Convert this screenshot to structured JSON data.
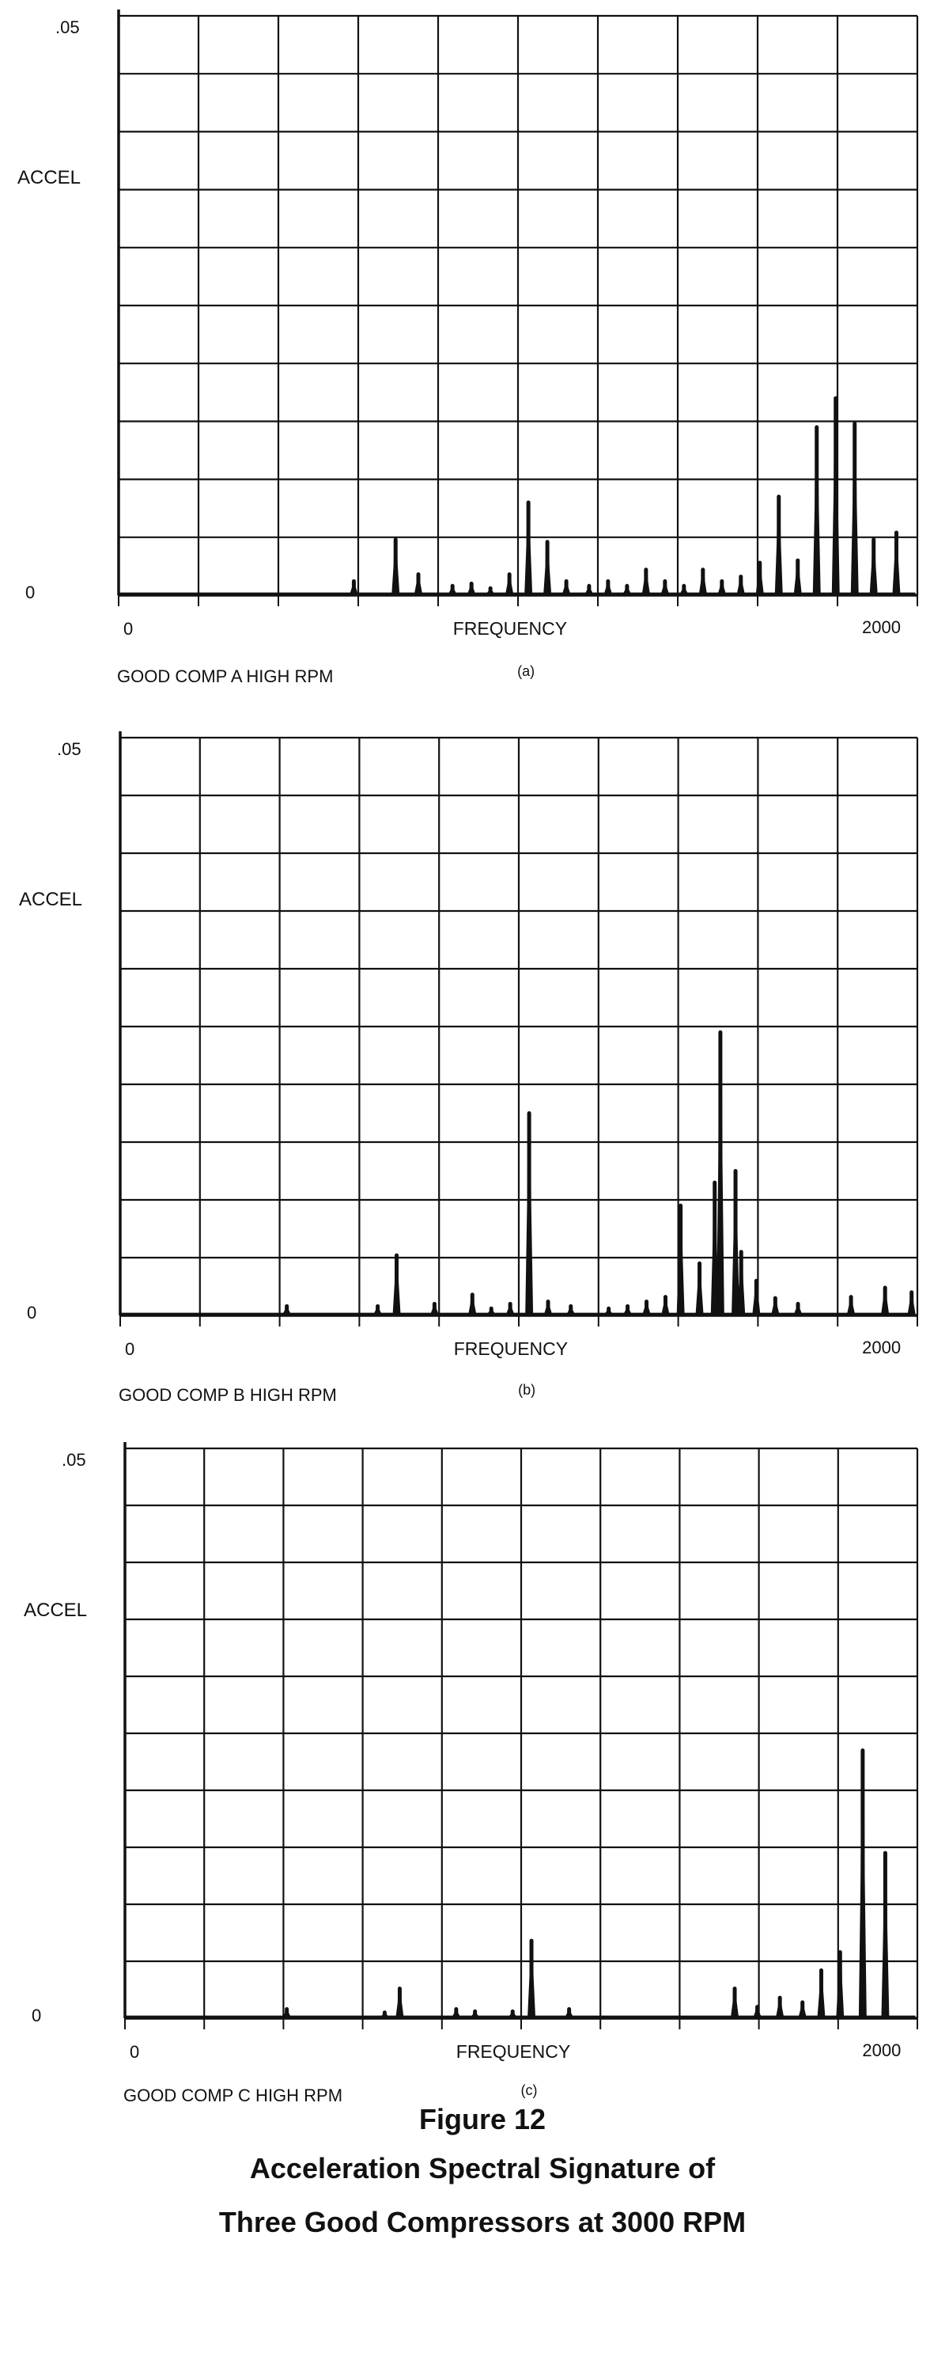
{
  "figure": {
    "number_label": "Figure 12",
    "title_line1": "Acceleration Spectral Signature of",
    "title_line2": "Three Good Compressors at 3000 RPM"
  },
  "colors": {
    "ink": "#111111",
    "background": "#ffffff"
  },
  "chart_data": [
    {
      "type": "line",
      "panel": "(a)",
      "title": "GOOD COMP A HIGH RPM",
      "xlabel": "FREQUENCY",
      "ylabel": "ACCEL",
      "xlim": [
        0,
        2000
      ],
      "ylim": [
        0,
        0.05
      ],
      "x_tick_labels": [
        "0",
        "2000"
      ],
      "y_tick_labels": [
        ".05",
        "0"
      ],
      "grid": true,
      "series": [
        {
          "peaks": [
            {
              "x": 620,
              "y": 0.0012
            },
            {
              "x": 730,
              "y": 0.0048
            },
            {
              "x": 790,
              "y": 0.0018
            },
            {
              "x": 880,
              "y": 0.0008
            },
            {
              "x": 930,
              "y": 0.001
            },
            {
              "x": 980,
              "y": 0.0006
            },
            {
              "x": 1030,
              "y": 0.0018
            },
            {
              "x": 1080,
              "y": 0.008
            },
            {
              "x": 1130,
              "y": 0.0046
            },
            {
              "x": 1180,
              "y": 0.0012
            },
            {
              "x": 1240,
              "y": 0.0008
            },
            {
              "x": 1290,
              "y": 0.0012
            },
            {
              "x": 1340,
              "y": 0.0008
            },
            {
              "x": 1390,
              "y": 0.0022
            },
            {
              "x": 1440,
              "y": 0.0012
            },
            {
              "x": 1490,
              "y": 0.0008
            },
            {
              "x": 1540,
              "y": 0.0022
            },
            {
              "x": 1590,
              "y": 0.0012
            },
            {
              "x": 1640,
              "y": 0.0016
            },
            {
              "x": 1690,
              "y": 0.0028
            },
            {
              "x": 1740,
              "y": 0.0085
            },
            {
              "x": 1790,
              "y": 0.003
            },
            {
              "x": 1840,
              "y": 0.0145
            },
            {
              "x": 1890,
              "y": 0.017
            },
            {
              "x": 1940,
              "y": 0.0148
            },
            {
              "x": 1990,
              "y": 0.0048
            },
            {
              "x": 2050,
              "y": 0.0054
            }
          ]
        }
      ]
    },
    {
      "type": "line",
      "panel": "(b)",
      "title": "GOOD COMP B HIGH RPM",
      "xlabel": "FREQUENCY",
      "ylabel": "ACCEL",
      "xlim": [
        0,
        2000
      ],
      "ylim": [
        0,
        0.05
      ],
      "x_tick_labels": [
        "0",
        "2000"
      ],
      "y_tick_labels": [
        ".05",
        "0"
      ],
      "grid": true,
      "series": [
        {
          "peaks": [
            {
              "x": 440,
              "y": 0.0008
            },
            {
              "x": 680,
              "y": 0.0008
            },
            {
              "x": 730,
              "y": 0.0052
            },
            {
              "x": 830,
              "y": 0.001
            },
            {
              "x": 930,
              "y": 0.0018
            },
            {
              "x": 980,
              "y": 0.0006
            },
            {
              "x": 1030,
              "y": 0.001
            },
            {
              "x": 1080,
              "y": 0.0175
            },
            {
              "x": 1130,
              "y": 0.0012
            },
            {
              "x": 1190,
              "y": 0.0008
            },
            {
              "x": 1290,
              "y": 0.0006
            },
            {
              "x": 1340,
              "y": 0.0008
            },
            {
              "x": 1390,
              "y": 0.0012
            },
            {
              "x": 1440,
              "y": 0.0016
            },
            {
              "x": 1480,
              "y": 0.0095
            },
            {
              "x": 1530,
              "y": 0.0045
            },
            {
              "x": 1570,
              "y": 0.0115
            },
            {
              "x": 1585,
              "y": 0.0245
            },
            {
              "x": 1625,
              "y": 0.0125
            },
            {
              "x": 1640,
              "y": 0.0055
            },
            {
              "x": 1680,
              "y": 0.003
            },
            {
              "x": 1730,
              "y": 0.0015
            },
            {
              "x": 1790,
              "y": 0.001
            },
            {
              "x": 1930,
              "y": 0.0016
            },
            {
              "x": 2020,
              "y": 0.0024
            },
            {
              "x": 2090,
              "y": 0.002
            }
          ]
        }
      ]
    },
    {
      "type": "line",
      "panel": "(c)",
      "title": "GOOD COMP C HIGH RPM",
      "xlabel": "FREQUENCY",
      "ylabel": "ACCEL",
      "xlim": [
        0,
        2000
      ],
      "ylim": [
        0,
        0.05
      ],
      "x_tick_labels": [
        "0",
        "2000"
      ],
      "y_tick_labels": [
        ".05",
        "0"
      ],
      "grid": true,
      "series": [
        {
          "peaks": [
            {
              "x": 430,
              "y": 0.0008
            },
            {
              "x": 690,
              "y": 0.0005
            },
            {
              "x": 730,
              "y": 0.0026
            },
            {
              "x": 880,
              "y": 0.0008
            },
            {
              "x": 930,
              "y": 0.0006
            },
            {
              "x": 1030,
              "y": 0.0006
            },
            {
              "x": 1080,
              "y": 0.0068
            },
            {
              "x": 1180,
              "y": 0.0008
            },
            {
              "x": 1620,
              "y": 0.0026
            },
            {
              "x": 1680,
              "y": 0.001
            },
            {
              "x": 1740,
              "y": 0.0018
            },
            {
              "x": 1800,
              "y": 0.0014
            },
            {
              "x": 1850,
              "y": 0.0042
            },
            {
              "x": 1900,
              "y": 0.0058
            },
            {
              "x": 1960,
              "y": 0.0235
            },
            {
              "x": 2020,
              "y": 0.0145
            }
          ]
        }
      ]
    }
  ]
}
